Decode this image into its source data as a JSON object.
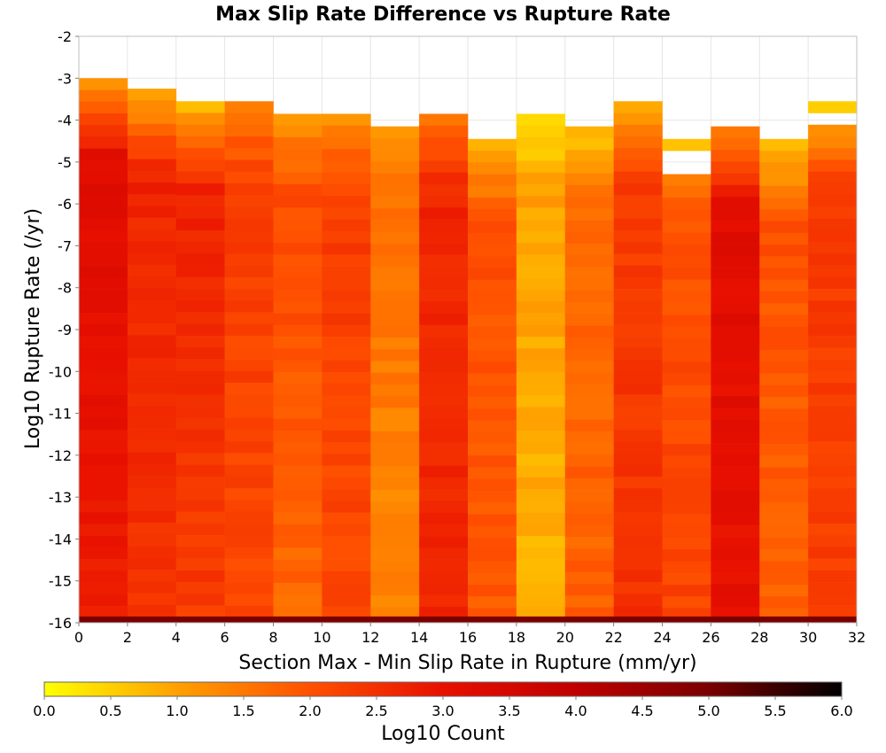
{
  "chart_data": {
    "type": "heatmap",
    "title": "Max Slip Rate Difference vs Rupture Rate",
    "xlabel": "Section Max - Min Slip Rate in Rupture (mm/yr)",
    "ylabel": "Log10 Rupture Rate (/yr)",
    "xlim": [
      0,
      32
    ],
    "ylim": [
      -16,
      -2
    ],
    "x_ticks": [
      "0",
      "2",
      "4",
      "6",
      "8",
      "10",
      "12",
      "14",
      "16",
      "18",
      "20",
      "22",
      "24",
      "26",
      "28",
      "30",
      "32"
    ],
    "y_ticks": [
      "-2",
      "-3",
      "-4",
      "-5",
      "-6",
      "-7",
      "-8",
      "-9",
      "-10",
      "-11",
      "-12",
      "-13",
      "-14",
      "-15",
      "-16"
    ],
    "x_bin_width": 2,
    "y_bin_height": 0.28,
    "grid": true,
    "colorbar": {
      "label": "Log10 Count",
      "range": [
        0,
        6
      ],
      "ticks": [
        "0.0",
        "0.5",
        "1.0",
        "1.5",
        "2.0",
        "2.5",
        "3.0",
        "3.5",
        "4.0",
        "4.5",
        "5.0",
        "5.5",
        "6.0"
      ],
      "colors": [
        "#ffff00",
        "#ffa000",
        "#ff5000",
        "#e81000",
        "#c00000",
        "#7a0000",
        "#000000"
      ]
    },
    "columns": [
      {
        "x_start": 0,
        "top": -3.0,
        "value_top": 1.1,
        "value_mid": 3.2,
        "value_bottom": 2.8
      },
      {
        "x_start": 2,
        "top": -3.25,
        "value_top": 0.6,
        "value_mid": 2.7,
        "value_bottom": 2.5
      },
      {
        "x_start": 4,
        "top": -3.55,
        "value_top": 0.6,
        "value_mid": 2.7,
        "value_bottom": 2.3
      },
      {
        "x_start": 6,
        "top": -3.55,
        "value_top": 1.3,
        "value_mid": 2.3,
        "value_bottom": 2.1
      },
      {
        "x_start": 8,
        "top": -3.85,
        "value_top": 1.0,
        "value_mid": 2.1,
        "value_bottom": 1.7
      },
      {
        "x_start": 10,
        "top": -3.85,
        "value_top": 1.0,
        "value_mid": 2.3,
        "value_bottom": 2.1
      },
      {
        "x_start": 12,
        "top": -4.15,
        "value_top": 1.0,
        "value_mid": 1.6,
        "value_bottom": 1.3
      },
      {
        "x_start": 14,
        "top": -3.85,
        "value_top": 1.5,
        "value_mid": 2.7,
        "value_bottom": 2.6
      },
      {
        "x_start": 16,
        "top": -4.45,
        "value_top": 0.7,
        "value_mid": 2.0,
        "value_bottom": 1.9
      },
      {
        "x_start": 18,
        "top": -3.85,
        "value_top": 0.3,
        "value_mid": 1.0,
        "value_bottom": 0.8
      },
      {
        "x_start": 20,
        "top": -4.15,
        "value_top": 0.5,
        "value_mid": 1.7,
        "value_bottom": 1.8
      },
      {
        "x_start": 22,
        "top": -3.55,
        "value_top": 0.6,
        "value_mid": 2.3,
        "value_bottom": 2.5
      },
      {
        "x_start": 24,
        "top": -4.45,
        "value_top": 0.6,
        "value_mid": 2.0,
        "value_bottom": 2.2
      },
      {
        "x_start": 26,
        "top": -4.15,
        "value_top": 1.1,
        "value_mid": 3.2,
        "value_bottom": 3.0
      },
      {
        "x_start": 28,
        "top": -4.45,
        "value_top": 0.4,
        "value_mid": 2.0,
        "value_bottom": 1.8
      },
      {
        "x_start": 30,
        "top": -3.55,
        "value_top": 0.3,
        "value_mid": 2.3,
        "value_bottom": 2.3
      }
    ],
    "gaps": [
      {
        "x_start": 24,
        "y_from": -4.75,
        "y_to": -5.3
      },
      {
        "x_start": 30,
        "y_from": -3.85,
        "y_to": -4.15
      }
    ],
    "bottom_row": {
      "y_from": -16.0,
      "y_to": -15.85,
      "value": 5.0
    }
  }
}
